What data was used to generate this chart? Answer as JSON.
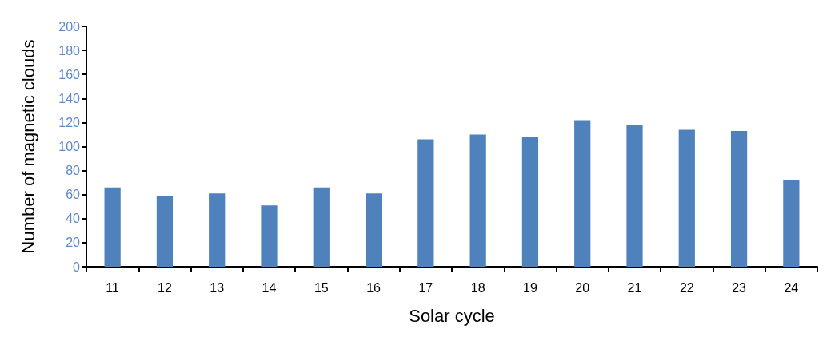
{
  "chart_data": {
    "type": "bar",
    "xlabel": "Solar cycle",
    "ylabel": "Number of magnetic clouds",
    "categories": [
      "11",
      "12",
      "13",
      "14",
      "15",
      "16",
      "17",
      "18",
      "19",
      "20",
      "21",
      "22",
      "23",
      "24"
    ],
    "values": [
      66,
      59,
      61,
      51,
      66,
      61,
      106,
      110,
      108,
      122,
      118,
      114,
      113,
      72
    ],
    "color": "#4f81bd",
    "ylim": [
      0,
      200
    ],
    "yticks": [
      0,
      20,
      40,
      60,
      80,
      100,
      120,
      140,
      160,
      180,
      200
    ],
    "grid": false
  }
}
